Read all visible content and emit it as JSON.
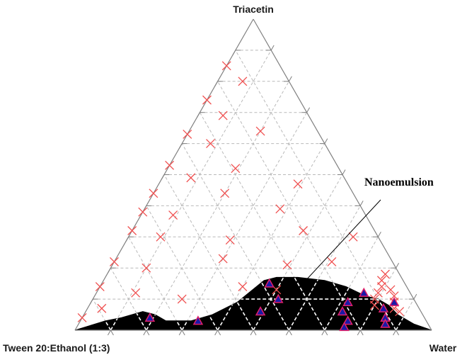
{
  "chart_data": {
    "type": "scatter",
    "diagram": "ternary",
    "vertex_labels": {
      "top": "Triacetin",
      "left": "Tween 20:Ethanol (1:3)",
      "right": "Water"
    },
    "grid": true,
    "grid_divisions": 10,
    "annotation": "Nanoemulsion",
    "colors": {
      "axis": "#7f7f7f",
      "grid": "#b9b9b9",
      "x_marker": "#f05050",
      "triangle_fill": "#1a1aa8",
      "triangle_edge": "#e0206a",
      "region": "#000000",
      "region_grid": "#ffffff"
    },
    "series": [
      {
        "marker": "x",
        "points": [
          {
            "oil": 0.85,
            "water": 0.0
          },
          {
            "oil": 0.8,
            "water": 0.07
          },
          {
            "oil": 0.74,
            "water": 0.0
          },
          {
            "oil": 0.69,
            "water": 0.07
          },
          {
            "oil": 0.63,
            "water": 0.0
          },
          {
            "oil": 0.6,
            "water": 0.08
          },
          {
            "oil": 0.64,
            "water": 0.2
          },
          {
            "oil": 0.53,
            "water": 0.0
          },
          {
            "oil": 0.52,
            "water": 0.19
          },
          {
            "oil": 0.49,
            "water": 0.08
          },
          {
            "oil": 0.44,
            "water": 0.0
          },
          {
            "oil": 0.44,
            "water": 0.2
          },
          {
            "oil": 0.47,
            "water": 0.39
          },
          {
            "oil": 0.38,
            "water": 0.0
          },
          {
            "oil": 0.37,
            "water": 0.09
          },
          {
            "oil": 0.39,
            "water": 0.38
          },
          {
            "oil": 0.32,
            "water": 0.0
          },
          {
            "oil": 0.3,
            "water": 0.09
          },
          {
            "oil": 0.29,
            "water": 0.29
          },
          {
            "oil": 0.32,
            "water": 0.48
          },
          {
            "oil": 0.3,
            "water": 0.63
          },
          {
            "oil": 0.22,
            "water": 0.0
          },
          {
            "oil": 0.2,
            "water": 0.1
          },
          {
            "oil": 0.23,
            "water": 0.3
          },
          {
            "oil": 0.21,
            "water": 0.49
          },
          {
            "oil": 0.22,
            "water": 0.61
          },
          {
            "oil": 0.14,
            "water": 0.0
          },
          {
            "oil": 0.12,
            "water": 0.11
          },
          {
            "oil": 0.14,
            "water": 0.4
          },
          {
            "oil": 0.13,
            "water": 0.5
          },
          {
            "oil": 0.1,
            "water": 0.25
          },
          {
            "oil": 0.07,
            "water": 0.04
          },
          {
            "oil": 0.04,
            "water": 0.0
          },
          {
            "oil": 0.18,
            "water": 0.78
          },
          {
            "oil": 0.16,
            "water": 0.78
          },
          {
            "oil": 0.14,
            "water": 0.79
          },
          {
            "oil": 0.12,
            "water": 0.79
          },
          {
            "oil": 0.1,
            "water": 0.79
          },
          {
            "oil": 0.08,
            "water": 0.8
          },
          {
            "oil": 0.13,
            "water": 0.82
          },
          {
            "oil": 0.11,
            "water": 0.84
          },
          {
            "oil": 0.09,
            "water": 0.85
          },
          {
            "oil": 0.07,
            "water": 0.86
          },
          {
            "oil": 0.06,
            "water": 0.88
          }
        ]
      },
      {
        "marker": "triangle",
        "points": [
          {
            "oil": 0.04,
            "water": 0.19
          },
          {
            "oil": 0.03,
            "water": 0.33
          },
          {
            "oil": 0.06,
            "water": 0.49
          },
          {
            "oil": 0.15,
            "water": 0.47
          },
          {
            "oil": 0.1,
            "water": 0.52
          },
          {
            "oil": 0.06,
            "water": 0.72
          },
          {
            "oil": 0.09,
            "water": 0.72
          },
          {
            "oil": 0.12,
            "water": 0.75
          },
          {
            "oil": 0.03,
            "water": 0.75
          },
          {
            "oil": 0.01,
            "water": 0.75
          },
          {
            "oil": 0.07,
            "water": 0.83
          },
          {
            "oil": 0.09,
            "water": 0.85
          },
          {
            "oil": 0.04,
            "water": 0.85
          },
          {
            "oil": 0.02,
            "water": 0.86
          }
        ]
      }
    ],
    "region": {
      "name": "Nanoemulsion",
      "boundary_top": [
        {
          "oil": 0.0,
          "water": 0.0
        },
        {
          "oil": 0.03,
          "water": 0.07
        },
        {
          "oil": 0.04,
          "water": 0.11
        },
        {
          "oil": 0.06,
          "water": 0.16
        },
        {
          "oil": 0.05,
          "water": 0.2
        },
        {
          "oil": 0.03,
          "water": 0.24
        },
        {
          "oil": 0.03,
          "water": 0.31
        },
        {
          "oil": 0.05,
          "water": 0.36
        },
        {
          "oil": 0.09,
          "water": 0.41
        },
        {
          "oil": 0.16,
          "water": 0.45
        },
        {
          "oil": 0.17,
          "water": 0.48
        },
        {
          "oil": 0.17,
          "water": 0.54
        },
        {
          "oil": 0.16,
          "water": 0.62
        },
        {
          "oil": 0.14,
          "water": 0.69
        },
        {
          "oil": 0.11,
          "water": 0.76
        },
        {
          "oil": 0.1,
          "water": 0.8
        },
        {
          "oil": 0.08,
          "water": 0.84
        },
        {
          "oil": 0.05,
          "water": 0.88
        },
        {
          "oil": 0.02,
          "water": 0.94
        },
        {
          "oil": 0.0,
          "water": 1.0
        }
      ]
    }
  }
}
